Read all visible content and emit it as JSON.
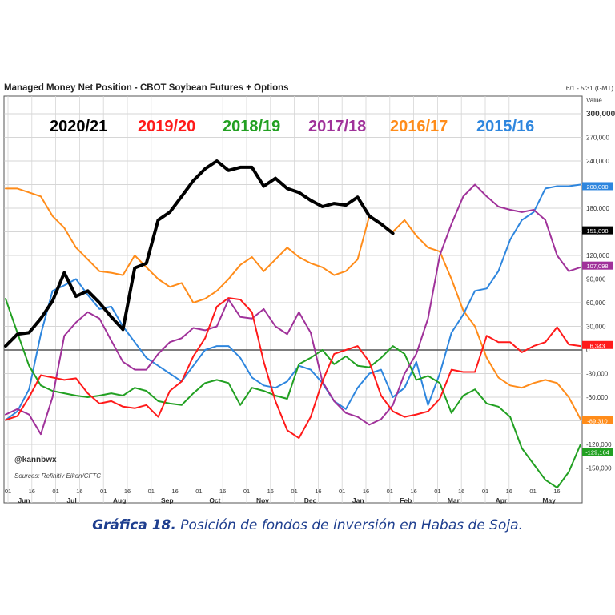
{
  "chart_data": {
    "type": "line",
    "title": "Managed Money Net Position - CBOT Soybean Futures + Options",
    "date_range": "6/1 - 5/31 (GMT)",
    "value_axis_label": "Value",
    "ylim": [
      -180000,
      330000
    ],
    "yticks": [
      300000,
      270000,
      240000,
      210000,
      180000,
      150000,
      120000,
      90000,
      60000,
      30000,
      0,
      -30000,
      -60000,
      -90000,
      -120000,
      -150000
    ],
    "ytick_labels": [
      "300,000",
      "270,000",
      "240,000",
      "210,000",
      "180,000",
      "150,000",
      "120,000",
      "90,000",
      "60,000",
      "30,000",
      "0",
      "-30,000",
      "-60,000",
      "-90,000",
      "-120,000",
      "-150,000"
    ],
    "grid": true,
    "x_day_labels": [
      "01",
      "16",
      "01",
      "16",
      "01",
      "16",
      "01",
      "16",
      "01",
      "16",
      "01",
      "16",
      "01",
      "16",
      "01",
      "16",
      "01",
      "16",
      "01",
      "16",
      "01",
      "16",
      "01",
      "16"
    ],
    "x_month_labels": [
      "Jun",
      "Jul",
      "Aug",
      "Sep",
      "Oct",
      "Nov",
      "Dec",
      "Jan",
      "Feb",
      "Mar",
      "Apr",
      "May"
    ],
    "watermark": "@kannbwx",
    "source": "Sources: Refinitiv Eikon/CFTC",
    "series": [
      {
        "name": "2020/21",
        "color": "#000000",
        "width": 4,
        "values": [
          5000,
          20000,
          22000,
          40000,
          62000,
          98000,
          68000,
          75000,
          60000,
          42000,
          26000,
          104000,
          110000,
          165000,
          175000,
          195000,
          215000,
          230000,
          240000,
          228000,
          232000,
          232000,
          208000,
          218000,
          205000,
          200000,
          190000,
          182000,
          186000,
          184000,
          194000,
          170000,
          160000,
          148000
        ]
      },
      {
        "name": "2019/20",
        "color": "#ff1a1a",
        "width": 2,
        "values": [
          -89000,
          -84000,
          -60000,
          -32000,
          -35000,
          -38000,
          -36000,
          -55000,
          -68000,
          -65000,
          -72000,
          -74000,
          -70000,
          -85000,
          -52000,
          -40000,
          -8000,
          15000,
          55000,
          66000,
          64000,
          48000,
          -15000,
          -65000,
          -102000,
          -112000,
          -85000,
          -40000,
          -5000,
          0,
          5000,
          -15000,
          -58000,
          -78000,
          -85000,
          -82000,
          -78000,
          -62000,
          -25000,
          -28000,
          -28000,
          18000,
          10000,
          10000,
          -3000,
          5000,
          10000,
          29000,
          7000,
          5000
        ]
      },
      {
        "name": "2018/19",
        "color": "#22a022",
        "width": 2,
        "values": [
          65000,
          22000,
          -20000,
          -45000,
          -52000,
          -55000,
          -58000,
          -60000,
          -58000,
          -55000,
          -58000,
          -48000,
          -52000,
          -65000,
          -68000,
          -70000,
          -55000,
          -42000,
          -38000,
          -42000,
          -70000,
          -48000,
          -52000,
          -58000,
          -62000,
          -18000,
          -10000,
          0,
          -18000,
          -8000,
          -20000,
          -22000,
          -10000,
          5000,
          -5000,
          -38000,
          -33000,
          -42000,
          -80000,
          -58000,
          -50000,
          -68000,
          -72000,
          -85000,
          -125000,
          -145000,
          -165000,
          -175000,
          -155000,
          -120000
        ]
      },
      {
        "name": "2017/18",
        "color": "#a0329a",
        "width": 2,
        "values": [
          -82000,
          -75000,
          -82000,
          -107000,
          -60000,
          18000,
          35000,
          48000,
          40000,
          12000,
          -15000,
          -25000,
          -25000,
          -5000,
          10000,
          15000,
          28000,
          25000,
          30000,
          64000,
          42000,
          40000,
          52000,
          30000,
          20000,
          48000,
          22000,
          -40000,
          -65000,
          -80000,
          -85000,
          -95000,
          -88000,
          -70000,
          -30000,
          -5000,
          40000,
          120000,
          160000,
          195000,
          210000,
          195000,
          182000,
          178000,
          175000,
          178000,
          165000,
          120000,
          100000,
          105000
        ]
      },
      {
        "name": "2016/17",
        "color": "#ff8c1a",
        "width": 2,
        "values": [
          205000,
          205000,
          200000,
          195000,
          170000,
          155000,
          130000,
          115000,
          100000,
          98000,
          95000,
          120000,
          105000,
          90000,
          80000,
          85000,
          60000,
          65000,
          75000,
          90000,
          108000,
          118000,
          100000,
          115000,
          130000,
          118000,
          110000,
          105000,
          95000,
          100000,
          115000,
          170000,
          160000,
          150000,
          165000,
          145000,
          130000,
          125000,
          90000,
          50000,
          30000,
          -10000,
          -35000,
          -45000,
          -48000,
          -42000,
          -38000,
          -42000,
          -60000,
          -88000
        ]
      },
      {
        "name": "2015/16",
        "color": "#2e86de",
        "width": 2,
        "values": [
          -89000,
          -78000,
          -50000,
          20000,
          75000,
          82000,
          90000,
          70000,
          52000,
          55000,
          30000,
          10000,
          -10000,
          -20000,
          -30000,
          -40000,
          -20000,
          0,
          5000,
          5000,
          -10000,
          -35000,
          -45000,
          -48000,
          -40000,
          -20000,
          -25000,
          -42000,
          -65000,
          -75000,
          -48000,
          -30000,
          -25000,
          -60000,
          -48000,
          -15000,
          -70000,
          -30000,
          22000,
          45000,
          75000,
          78000,
          100000,
          140000,
          165000,
          175000,
          205000,
          208000,
          208000,
          210000
        ]
      }
    ],
    "end_labels": [
      {
        "text": "208,000",
        "value": 208000,
        "bg": "#2e86de"
      },
      {
        "text": "151,898",
        "value": 151898,
        "bg": "#000000"
      },
      {
        "text": "107,098",
        "value": 107098,
        "bg": "#a0329a"
      },
      {
        "text": "6,343",
        "value": 6343,
        "bg": "#ff1a1a"
      },
      {
        "text": "-89,310",
        "value": -89310,
        "bg": "#ff8c1a"
      },
      {
        "text": "-129,164",
        "value": -129164,
        "bg": "#22a022"
      }
    ]
  },
  "caption": {
    "bold": "Gráfica 18.",
    "text": " Posición de fondos de inversión en Habas de Soja."
  }
}
